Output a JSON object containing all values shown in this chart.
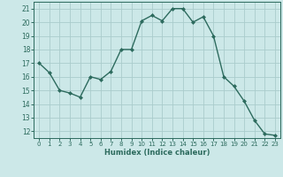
{
  "x": [
    0,
    1,
    2,
    3,
    4,
    5,
    6,
    7,
    8,
    9,
    10,
    11,
    12,
    13,
    14,
    15,
    16,
    17,
    18,
    19,
    20,
    21,
    22,
    23
  ],
  "y": [
    17.0,
    16.3,
    15.0,
    14.8,
    14.5,
    16.0,
    15.8,
    16.4,
    18.0,
    18.0,
    20.1,
    20.5,
    20.1,
    21.0,
    21.0,
    20.0,
    20.4,
    19.0,
    16.0,
    15.3,
    14.2,
    12.8,
    11.8,
    11.7
  ],
  "line_color": "#2d6b5e",
  "marker": "D",
  "marker_size": 2.0,
  "bg_color": "#cce8e8",
  "grid_color": "#aacccc",
  "xlabel": "Humidex (Indice chaleur)",
  "xlabel_color": "#2d6b5e",
  "tick_color": "#2d6b5e",
  "ylim": [
    11.5,
    21.5
  ],
  "xlim": [
    -0.5,
    23.5
  ],
  "yticks": [
    12,
    13,
    14,
    15,
    16,
    17,
    18,
    19,
    20,
    21
  ],
  "xticks": [
    0,
    1,
    2,
    3,
    4,
    5,
    6,
    7,
    8,
    9,
    10,
    11,
    12,
    13,
    14,
    15,
    16,
    17,
    18,
    19,
    20,
    21,
    22,
    23
  ],
  "line_width": 1.0,
  "tick_labelsize": 5.5,
  "xlabel_fontsize": 6.0,
  "figure_width": 3.2,
  "figure_height": 2.0,
  "dpi": 100
}
